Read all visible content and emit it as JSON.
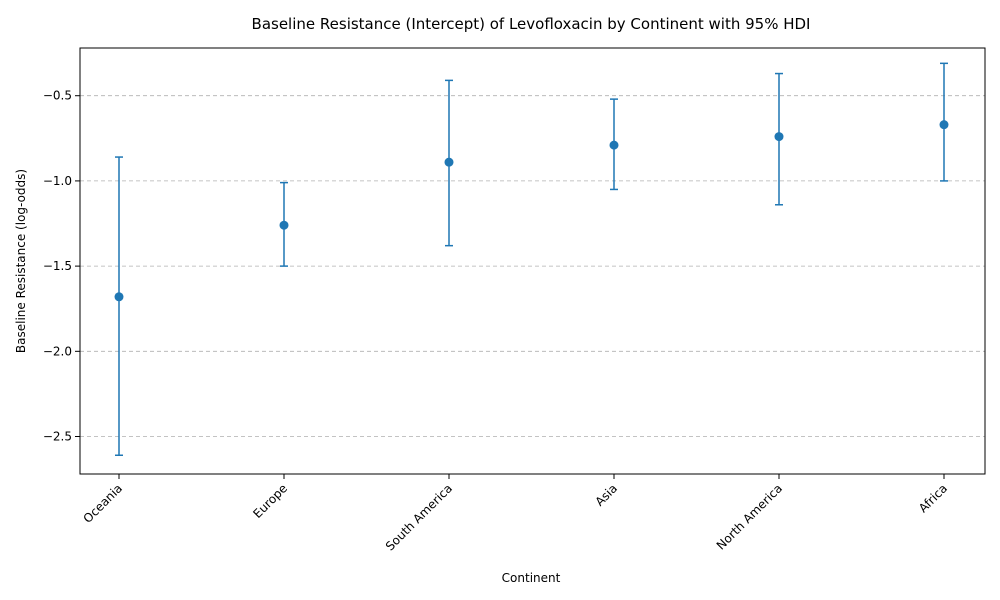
{
  "chart_data": {
    "type": "scatter",
    "title": "Baseline Resistance (Intercept) of Levofloxacin by Continent with 95% HDI",
    "xlabel": "Continent",
    "ylabel": "Baseline Resistance (log-odds)",
    "categories": [
      "Oceania",
      "Europe",
      "South America",
      "Asia",
      "North America",
      "Africa"
    ],
    "values": [
      -1.68,
      -1.26,
      -0.89,
      -0.79,
      -0.74,
      -0.67
    ],
    "hdi_lower": [
      -2.61,
      -1.5,
      -1.38,
      -1.05,
      -1.14,
      -1.0
    ],
    "hdi_upper": [
      -0.86,
      -1.01,
      -0.41,
      -0.52,
      -0.37,
      -0.31
    ],
    "ylim": [
      -2.72,
      -0.22
    ],
    "yticks": [
      -2.5,
      -2.0,
      -1.5,
      -1.0,
      -0.5
    ],
    "ytick_labels": [
      "−2.5",
      "−2.0",
      "−1.5",
      "−1.0",
      "−0.5"
    ],
    "grid": "y-dashed",
    "color": "#1f77b4"
  }
}
